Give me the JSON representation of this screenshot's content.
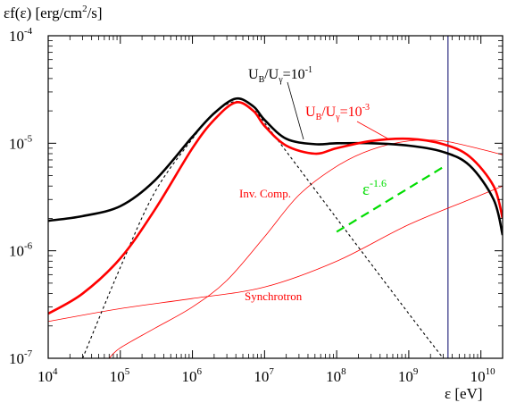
{
  "chart_data": {
    "type": "line",
    "xscale": "log",
    "yscale": "log",
    "xlim": [
      10000,
      20000000000
    ],
    "ylim": [
      1e-07,
      0.0001
    ],
    "ylabel": {
      "main": "εf(ε) [erg/cm",
      "sup": "2",
      "tail": "/s]"
    },
    "xlabel": "ε [eV]",
    "x_ticks": [
      {
        "value": 10000,
        "base": "10",
        "exp": "4"
      },
      {
        "value": 100000,
        "base": "10",
        "exp": "5"
      },
      {
        "value": 1000000,
        "base": "10",
        "exp": "6"
      },
      {
        "value": 10000000,
        "base": "10",
        "exp": "7"
      },
      {
        "value": 100000000,
        "base": "10",
        "exp": "8"
      },
      {
        "value": 1000000000,
        "base": "10",
        "exp": "9"
      },
      {
        "value": 10000000000,
        "base": "10",
        "exp": "10"
      }
    ],
    "y_ticks": [
      {
        "value": 1e-07,
        "base": "10",
        "exp": "-7"
      },
      {
        "value": 1e-06,
        "base": "10",
        "exp": "-6"
      },
      {
        "value": 1e-05,
        "base": "10",
        "exp": "-5"
      },
      {
        "value": 0.0001,
        "base": "10",
        "exp": "-4"
      }
    ],
    "series": [
      {
        "color": "#000000",
        "width": 2.6,
        "dash": "",
        "x": [
          10000,
          30000,
          100000,
          300000,
          1000000,
          2000000,
          4000000,
          7000000,
          10000000,
          20000000,
          50000000,
          100000000,
          300000000,
          1000000000,
          3000000000,
          7000000000,
          15000000000,
          20000000000
        ],
        "y": [
          1.9e-06,
          2.1e-06,
          2.6e-06,
          4.5e-06,
          1.15e-05,
          1.9e-05,
          2.6e-05,
          2.2e-05,
          1.65e-05,
          1.1e-05,
          9.8e-06,
          1e-05,
          1e-05,
          9.5e-06,
          8.3e-06,
          6.2e-06,
          3e-06,
          1.4e-06
        ]
      },
      {
        "color": "#ff0000",
        "width": 2.6,
        "dash": "",
        "x": [
          10000,
          30000,
          100000,
          300000,
          1000000,
          2000000,
          4000000,
          7000000,
          10000000,
          20000000,
          50000000,
          100000000,
          300000000,
          1000000000,
          3000000000,
          7000000000,
          15000000000,
          20000000000
        ],
        "y": [
          2.6e-07,
          4e-07,
          8.5e-07,
          2.4e-06,
          9e-06,
          1.65e-05,
          2.4e-05,
          2e-05,
          1.45e-05,
          9.5e-06,
          8e-06,
          9e-06,
          1.05e-05,
          1.1e-05,
          9.8e-06,
          7.5e-06,
          4e-06,
          2e-06
        ]
      },
      {
        "color": "#000000",
        "width": 1.1,
        "dash": "3,3",
        "x": [
          30000,
          100000,
          300000,
          1000000,
          2000000,
          4000000,
          7000000,
          10000000,
          100000000,
          1000000000,
          3000000000
        ],
        "y": [
          1e-07,
          7e-07,
          3.5e-06,
          1.1e-05,
          1.9e-05,
          2.45e-05,
          2e-05,
          1.55e-05,
          2e-06,
          2.6e-07,
          1e-07
        ]
      },
      {
        "color": "#ff0000",
        "width": 0.8,
        "dash": "",
        "x": [
          10000,
          100000,
          1000000,
          10000000,
          100000000,
          1000000000,
          10000000000,
          20000000000
        ],
        "y": [
          2.2e-07,
          2.9e-07,
          3.6e-07,
          4.6e-07,
          8e-07,
          1.75e-06,
          3.3e-06,
          4e-06
        ]
      },
      {
        "color": "#ff0000",
        "width": 0.8,
        "dash": "",
        "x": [
          70000,
          100000,
          300000,
          1000000,
          3000000,
          10000000,
          30000000,
          100000000,
          300000000,
          1000000000,
          3000000000,
          10000000000,
          20000000000
        ],
        "y": [
          1e-07,
          1.25e-07,
          1.9e-07,
          3e-07,
          5.3e-07,
          1.35e-06,
          3.3e-06,
          6.1e-06,
          8.7e-06,
          1.05e-05,
          1.05e-05,
          8.8e-06,
          7.8e-06
        ]
      },
      {
        "color": "#00dd00",
        "width": 2.2,
        "dash": "10,6",
        "x": [
          100000000,
          3000000000
        ],
        "y": [
          1.5e-06,
          6e-06
        ]
      }
    ],
    "vertical_line": {
      "x": 3500000000,
      "color": "#000066"
    },
    "annotations": {
      "black_label": {
        "base": "U",
        "sub1": "B",
        "mid": "/U",
        "sub2": "γ",
        "eq": "=10",
        "sup": "-1"
      },
      "red_label": {
        "base": "U",
        "sub1": "B",
        "mid": "/U",
        "sub2": "γ",
        "eq": "=10",
        "sup": "-3"
      },
      "inv_comp": "Inv. Comp.",
      "synchrotron": "Synchrotron",
      "slope": {
        "base": "ε",
        "sup": "-1.6"
      }
    },
    "colors": {
      "red": "#ff0000",
      "green": "#00dd00",
      "black": "#000000"
    }
  }
}
